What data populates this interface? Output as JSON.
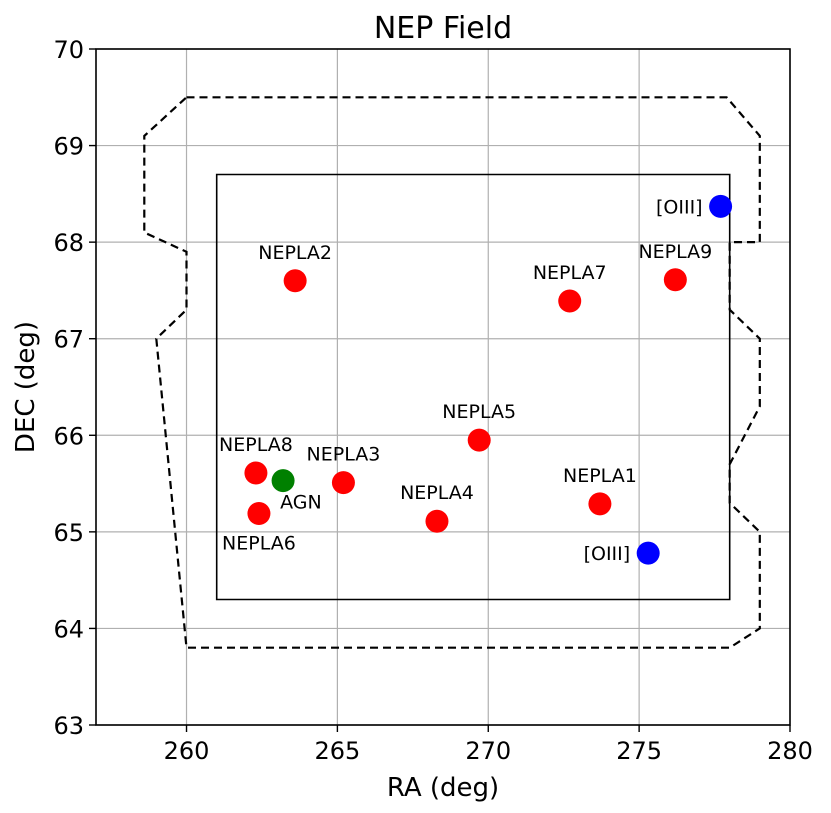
{
  "chart_data": {
    "type": "scatter",
    "title": "NEP Field",
    "xlabel": "RA (deg)",
    "ylabel": "DEC (deg)",
    "xlim": [
      257,
      280
    ],
    "ylim": [
      63,
      70
    ],
    "xticks": [
      260,
      265,
      270,
      275,
      280
    ],
    "yticks": [
      63,
      64,
      65,
      66,
      67,
      68,
      69,
      70
    ],
    "grid": true,
    "colors": {
      "red": "#ff0000",
      "green": "#008000",
      "blue": "#0000ff",
      "grid": "#b0b0b0"
    },
    "points": [
      {
        "label": "NEPLA2",
        "ra": 263.6,
        "dec": 67.6,
        "color": "red",
        "label_pos": "above"
      },
      {
        "label": "NEPLA7",
        "ra": 272.7,
        "dec": 67.39,
        "color": "red",
        "label_pos": "above"
      },
      {
        "label": "NEPLA9",
        "ra": 276.2,
        "dec": 67.61,
        "color": "red",
        "label_pos": "above"
      },
      {
        "label": "NEPLA5",
        "ra": 269.7,
        "dec": 65.95,
        "color": "red",
        "label_pos": "above"
      },
      {
        "label": "NEPLA8",
        "ra": 262.3,
        "dec": 65.61,
        "color": "red",
        "label_pos": "above"
      },
      {
        "label": "NEPLA3",
        "ra": 265.2,
        "dec": 65.51,
        "color": "red",
        "label_pos": "above"
      },
      {
        "label": "NEPLA6",
        "ra": 262.4,
        "dec": 65.19,
        "color": "red",
        "label_pos": "below"
      },
      {
        "label": "NEPLA4",
        "ra": 268.3,
        "dec": 65.11,
        "color": "red",
        "label_pos": "above"
      },
      {
        "label": "NEPLA1",
        "ra": 273.7,
        "dec": 65.29,
        "color": "red",
        "label_pos": "above"
      },
      {
        "label": "AGN",
        "ra": 263.2,
        "dec": 65.53,
        "color": "green",
        "label_pos": "below-right"
      },
      {
        "label": "[OIII]",
        "ra": 277.7,
        "dec": 68.37,
        "color": "blue",
        "label_pos": "left"
      },
      {
        "label": "[OIII]",
        "ra": 275.3,
        "dec": 64.78,
        "color": "blue",
        "label_pos": "left"
      }
    ],
    "inner_region": [
      [
        261.0,
        64.3
      ],
      [
        278.0,
        64.3
      ],
      [
        278.0,
        68.7
      ],
      [
        261.0,
        68.7
      ]
    ],
    "outer_region": [
      [
        260.0,
        69.5
      ],
      [
        277.9,
        69.5
      ],
      [
        279.0,
        69.1
      ],
      [
        279.0,
        68.0
      ],
      [
        278.0,
        68.0
      ],
      [
        278.0,
        67.3
      ],
      [
        279.0,
        67.0
      ],
      [
        279.0,
        66.3
      ],
      [
        278.0,
        65.7
      ],
      [
        278.0,
        65.3
      ],
      [
        279.0,
        65.0
      ],
      [
        279.0,
        64.0
      ],
      [
        278.0,
        63.8
      ],
      [
        260.0,
        63.8
      ],
      [
        259.0,
        67.0
      ],
      [
        260.0,
        67.3
      ],
      [
        260.0,
        67.9
      ],
      [
        258.6,
        68.1
      ],
      [
        258.6,
        69.1
      ]
    ]
  }
}
